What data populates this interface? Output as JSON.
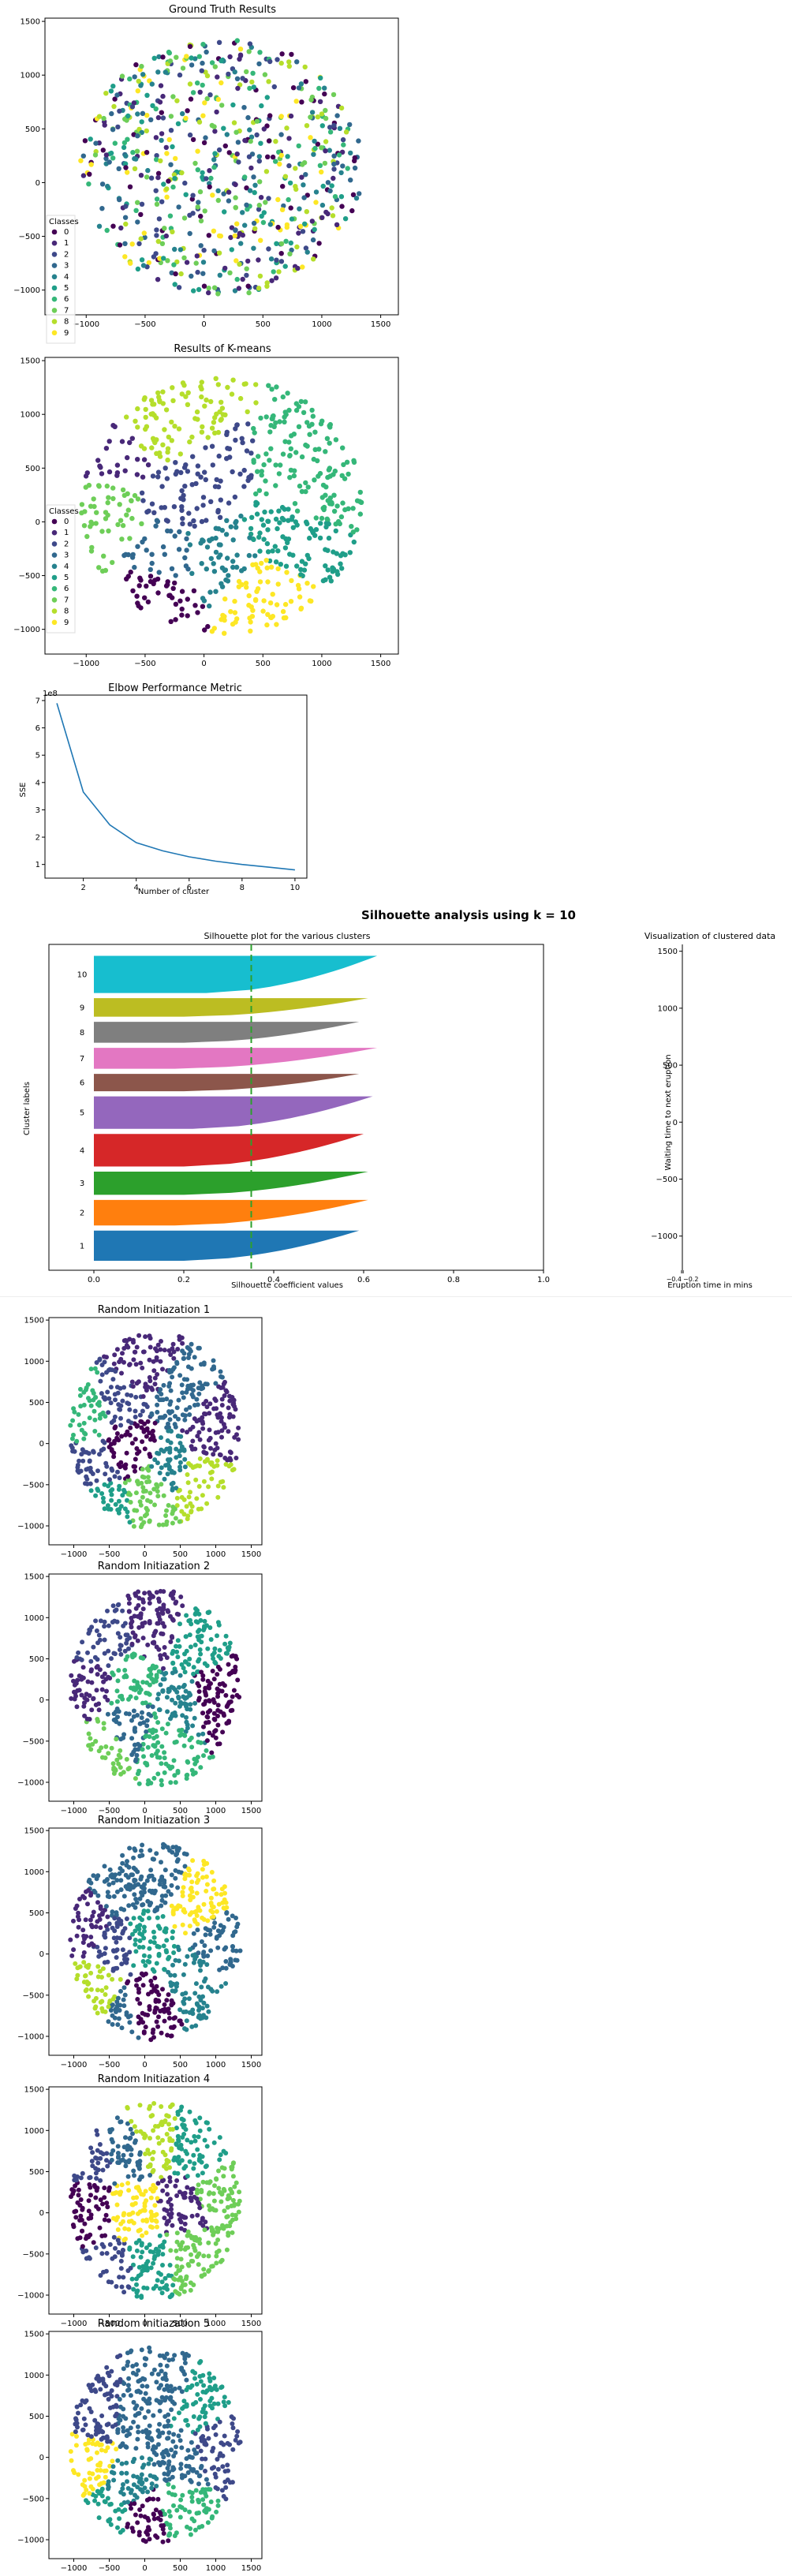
{
  "colors": {
    "viridis": [
      "#440154",
      "#482878",
      "#3e4989",
      "#31688e",
      "#26828e",
      "#1f9e89",
      "#35b779",
      "#6ece58",
      "#b5de2b",
      "#fde725"
    ],
    "tab10": [
      "#1f77b4",
      "#ff7f0e",
      "#2ca02c",
      "#d62728",
      "#9467bd",
      "#8c564b",
      "#e377c2",
      "#7f7f7f",
      "#bcbd22",
      "#17becf"
    ],
    "line": "#1f77b4",
    "threshold": "#2ca02c"
  },
  "charts": {
    "ground_truth": {
      "type": "scatter",
      "title": "Ground Truth Results",
      "xlim": [
        -1350,
        1650
      ],
      "ylim": [
        -1230,
        1530
      ],
      "xticks": [
        -1000,
        -500,
        0,
        500,
        1000,
        1500
      ],
      "xtick_labels": [
        "−1000",
        "−500",
        "0",
        "500",
        "1000",
        "1500"
      ],
      "yticks": [
        -1000,
        -500,
        0,
        500,
        1000,
        1500
      ],
      "ytick_labels": [
        "−1000",
        "−500",
        "0",
        "500",
        "1000",
        "1500"
      ],
      "legend": {
        "title": "Classes",
        "labels": [
          "0",
          "1",
          "2",
          "3",
          "4",
          "5",
          "6",
          "7",
          "8",
          "9"
        ],
        "placement": "lower-left"
      }
    },
    "kmeans": {
      "type": "scatter",
      "title": "Results of K-means",
      "xlim": [
        -1350,
        1650
      ],
      "ylim": [
        -1230,
        1530
      ],
      "xticks": [
        -1000,
        -500,
        0,
        500,
        1000,
        1500
      ],
      "xtick_labels": [
        "−1000",
        "−500",
        "0",
        "500",
        "1000",
        "1500"
      ],
      "yticks": [
        -1000,
        -500,
        0,
        500,
        1000,
        1500
      ],
      "ytick_labels": [
        "−1000",
        "−500",
        "0",
        "500",
        "1000",
        "1500"
      ],
      "legend": {
        "title": "Classes",
        "labels": [
          "0",
          "1",
          "2",
          "3",
          "4",
          "5",
          "6",
          "7",
          "8",
          "9"
        ],
        "placement": "lower-left"
      },
      "centers": [
        [
          -420,
          -650,
          0
        ],
        [
          -700,
          700,
          1
        ],
        [
          -120,
          300,
          2
        ],
        [
          -350,
          -380,
          3
        ],
        [
          100,
          -350,
          4
        ],
        [
          750,
          -150,
          5
        ],
        [
          950,
          300,
          6
        ],
        [
          -900,
          0,
          7
        ],
        [
          -450,
          850,
          8
        ],
        [
          500,
          -650,
          9
        ]
      ]
    },
    "elbow": {
      "type": "line",
      "title": "Elbow Performance Metric",
      "xlabel": "Number of cluster",
      "ylabel": "SSE",
      "offset_text": "1e8",
      "x": [
        1,
        2,
        3,
        4,
        5,
        6,
        7,
        8,
        9,
        10
      ],
      "y": [
        6.9,
        3.65,
        2.45,
        1.8,
        1.5,
        1.28,
        1.12,
        1.0,
        0.9,
        0.8
      ],
      "xlim": [
        0.55,
        10.45
      ],
      "ylim": [
        0.5,
        7.2
      ],
      "xticks": [
        2,
        4,
        6,
        8,
        10
      ],
      "xtick_labels": [
        "2",
        "4",
        "6",
        "8",
        "10"
      ],
      "yticks": [
        1,
        2,
        3,
        4,
        5,
        6,
        7
      ],
      "ytick_labels": [
        "1",
        "2",
        "3",
        "4",
        "5",
        "6",
        "7"
      ]
    },
    "silhouette": {
      "suptitle": "Silhouette analysis using k = 10",
      "type": "bar",
      "title": "Silhouette plot for the various clusters",
      "xlabel": "Silhouette coefficient values",
      "ylabel": "Cluster labels",
      "xlim": [
        -0.1,
        1.0
      ],
      "xticks": [
        0.0,
        0.2,
        0.4,
        0.6,
        0.8,
        1.0
      ],
      "xtick_labels": [
        "0.0",
        "0.2",
        "0.4",
        "0.6",
        "0.8",
        "1.0"
      ],
      "average_score": 0.35,
      "clusters": [
        {
          "label": "1",
          "max": 0.59,
          "min": 0.2,
          "size": 1.3
        },
        {
          "label": "2",
          "max": 0.61,
          "min": 0.18,
          "size": 1.1
        },
        {
          "label": "3",
          "max": 0.61,
          "min": 0.2,
          "size": 1.0
        },
        {
          "label": "4",
          "max": 0.6,
          "min": 0.2,
          "size": 1.4
        },
        {
          "label": "5",
          "max": 0.62,
          "min": 0.22,
          "size": 1.4
        },
        {
          "label": "6",
          "max": 0.59,
          "min": 0.2,
          "size": 0.75
        },
        {
          "label": "7",
          "max": 0.63,
          "min": 0.18,
          "size": 0.9
        },
        {
          "label": "8",
          "max": 0.59,
          "min": 0.2,
          "size": 0.9
        },
        {
          "label": "9",
          "max": 0.61,
          "min": 0.2,
          "size": 0.8
        },
        {
          "label": "10",
          "max": 0.63,
          "min": 0.25,
          "size": 1.6
        }
      ]
    },
    "clustered": {
      "type": "scatter",
      "title": "Visualization of clustered data",
      "xlabel": "Eruption time in mins",
      "ylabel": "Waiting time to next eruption",
      "xtick_labels": [
        "−0.4",
        "−0.2"
      ],
      "yticks": [
        -1000,
        -500,
        0,
        500,
        1000,
        1500
      ],
      "ytick_labels": [
        "−1000",
        "−500",
        "0",
        "500",
        "1000",
        "1500"
      ],
      "ylim": [
        -1300,
        1560
      ]
    },
    "random_inits": [
      {
        "title": "Random Initiazation 1",
        "centers": [
          [
            -650,
            -250,
            2
          ],
          [
            -250,
            -50,
            0
          ],
          [
            -800,
            400,
            6
          ],
          [
            -350,
            500,
            2
          ],
          [
            0,
            900,
            1
          ],
          [
            500,
            600,
            3
          ],
          [
            900,
            200,
            1
          ],
          [
            400,
            -300,
            4
          ],
          [
            100,
            -600,
            7
          ],
          [
            700,
            -450,
            8
          ],
          [
            -600,
            -700,
            5
          ]
        ]
      },
      {
        "title": "Random Initiazation 2",
        "centers": [
          [
            -600,
            -600,
            7
          ],
          [
            -200,
            -300,
            3
          ],
          [
            -750,
            150,
            1
          ],
          [
            -200,
            150,
            6
          ],
          [
            -600,
            700,
            2
          ],
          [
            200,
            850,
            1
          ],
          [
            700,
            700,
            5
          ],
          [
            1000,
            50,
            0
          ],
          [
            500,
            -50,
            4
          ],
          [
            250,
            -500,
            6
          ]
        ]
      },
      {
        "title": "Random Initiazation 3",
        "centers": [
          [
            -800,
            400,
            1
          ],
          [
            -400,
            100,
            2
          ],
          [
            -600,
            -500,
            8
          ],
          [
            -300,
            -700,
            3
          ],
          [
            0,
            -600,
            0
          ],
          [
            0,
            150,
            5
          ],
          [
            -400,
            800,
            3
          ],
          [
            200,
            900,
            3
          ],
          [
            700,
            650,
            9
          ],
          [
            1000,
            100,
            3
          ],
          [
            700,
            -300,
            4
          ]
        ]
      },
      {
        "title": "Random Initiazation 4",
        "centers": [
          [
            -750,
            0,
            0
          ],
          [
            -150,
            0,
            9
          ],
          [
            -700,
            700,
            2
          ],
          [
            -250,
            750,
            3
          ],
          [
            100,
            900,
            8
          ],
          [
            700,
            800,
            5
          ],
          [
            1000,
            200,
            7
          ],
          [
            550,
            50,
            1
          ],
          [
            100,
            -600,
            5
          ],
          [
            600,
            -500,
            7
          ],
          [
            -500,
            -650,
            2
          ]
        ]
      },
      {
        "title": "Random Initiazation 5",
        "centers": [
          [
            -750,
            -100,
            9
          ],
          [
            -250,
            -300,
            4
          ],
          [
            -600,
            550,
            2
          ],
          [
            -150,
            500,
            3
          ],
          [
            300,
            850,
            3
          ],
          [
            750,
            650,
            5
          ],
          [
            1000,
            100,
            2
          ],
          [
            550,
            -50,
            3
          ],
          [
            0,
            -750,
            0
          ],
          [
            500,
            -600,
            6
          ],
          [
            -550,
            -700,
            5
          ]
        ]
      }
    ],
    "random_axes": {
      "xlim": [
        -1350,
        1650
      ],
      "ylim": [
        -1230,
        1530
      ],
      "xticks": [
        -1000,
        -500,
        0,
        500,
        1000,
        1500
      ],
      "xtick_labels": [
        "−1000",
        "−500",
        "0",
        "500",
        "1000",
        "1500"
      ],
      "yticks": [
        -1000,
        -500,
        0,
        500,
        1000,
        1500
      ],
      "ytick_labels": [
        "−1000",
        "−500",
        "0",
        "500",
        "1000",
        "1500"
      ]
    }
  }
}
